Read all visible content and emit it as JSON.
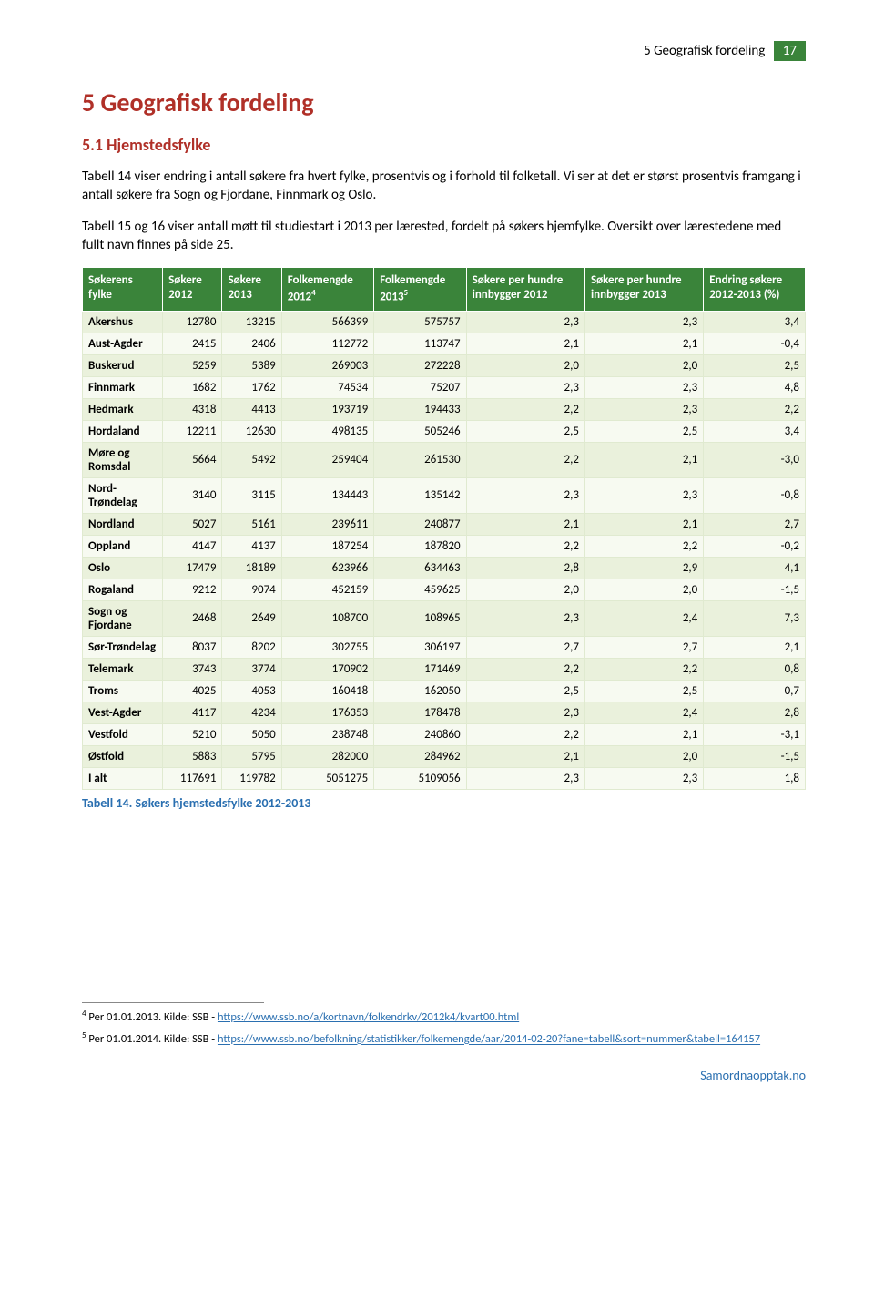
{
  "header": {
    "section_label": "5 Geografisk fordeling",
    "page_number": "17"
  },
  "heading": "5 Geografisk fordeling",
  "subheading": "5.1 Hjemstedsfylke",
  "paragraphs": {
    "p1": "Tabell 14 viser endring i antall søkere fra hvert fylke, prosentvis og i forhold til folketall. Vi ser at det er størst prosentvis framgang i antall søkere fra Sogn og Fjordane, Finnmark og Oslo.",
    "p2": "Tabell 15 og 16 viser antall møtt til studiestart i 2013 per lærested, fordelt på søkers hjemfylke. Oversikt over lærestedene med fullt navn finnes på side 25."
  },
  "table": {
    "columns": [
      "Søkerens fylke",
      "Søkere 2012",
      "Søkere 2013",
      "Folkemengde 2012",
      "Folkemengde 2013",
      "Søkere per hundre innbygger 2012",
      "Søkere per hundre innbygger 2013",
      "Endring søkere 2012-2013 (%)"
    ],
    "sup4": "4",
    "sup5": "5",
    "rows": [
      [
        "Akershus",
        "12780",
        "13215",
        "566399",
        "575757",
        "2,3",
        "2,3",
        "3,4"
      ],
      [
        "Aust-Agder",
        "2415",
        "2406",
        "112772",
        "113747",
        "2,1",
        "2,1",
        "-0,4"
      ],
      [
        "Buskerud",
        "5259",
        "5389",
        "269003",
        "272228",
        "2,0",
        "2,0",
        "2,5"
      ],
      [
        "Finnmark",
        "1682",
        "1762",
        "74534",
        "75207",
        "2,3",
        "2,3",
        "4,8"
      ],
      [
        "Hedmark",
        "4318",
        "4413",
        "193719",
        "194433",
        "2,2",
        "2,3",
        "2,2"
      ],
      [
        "Hordaland",
        "12211",
        "12630",
        "498135",
        "505246",
        "2,5",
        "2,5",
        "3,4"
      ],
      [
        "Møre og Romsdal",
        "5664",
        "5492",
        "259404",
        "261530",
        "2,2",
        "2,1",
        "-3,0"
      ],
      [
        "Nord-Trøndelag",
        "3140",
        "3115",
        "134443",
        "135142",
        "2,3",
        "2,3",
        "-0,8"
      ],
      [
        "Nordland",
        "5027",
        "5161",
        "239611",
        "240877",
        "2,1",
        "2,1",
        "2,7"
      ],
      [
        "Oppland",
        "4147",
        "4137",
        "187254",
        "187820",
        "2,2",
        "2,2",
        "-0,2"
      ],
      [
        "Oslo",
        "17479",
        "18189",
        "623966",
        "634463",
        "2,8",
        "2,9",
        "4,1"
      ],
      [
        "Rogaland",
        "9212",
        "9074",
        "452159",
        "459625",
        "2,0",
        "2,0",
        "-1,5"
      ],
      [
        "Sogn og Fjordane",
        "2468",
        "2649",
        "108700",
        "108965",
        "2,3",
        "2,4",
        "7,3"
      ],
      [
        "Sør-Trøndelag",
        "8037",
        "8202",
        "302755",
        "306197",
        "2,7",
        "2,7",
        "2,1"
      ],
      [
        "Telemark",
        "3743",
        "3774",
        "170902",
        "171469",
        "2,2",
        "2,2",
        "0,8"
      ],
      [
        "Troms",
        "4025",
        "4053",
        "160418",
        "162050",
        "2,5",
        "2,5",
        "0,7"
      ],
      [
        "Vest-Agder",
        "4117",
        "4234",
        "176353",
        "178478",
        "2,3",
        "2,4",
        "2,8"
      ],
      [
        "Vestfold",
        "5210",
        "5050",
        "238748",
        "240860",
        "2,2",
        "2,1",
        "-3,1"
      ],
      [
        "Østfold",
        "5883",
        "5795",
        "282000",
        "284962",
        "2,1",
        "2,0",
        "-1,5"
      ],
      [
        "I alt",
        "117691",
        "119782",
        "5051275",
        "5109056",
        "2,3",
        "2,3",
        "1,8"
      ]
    ],
    "caption": "Tabell 14. Søkers hjemstedsfylke 2012-2013"
  },
  "footnotes": {
    "f4_prefix": "Per 01.01.2013. Kilde: SSB - ",
    "f4_marker": "4",
    "f4_link": "https://www.ssb.no/a/kortnavn/folkendrkv/2012k4/kvart00.html",
    "f5_prefix": "Per 01.01.2014. Kilde: SSB - ",
    "f5_marker": "5",
    "f5_link": "https://www.ssb.no/befolkning/statistikker/folkemengde/aar/2014-02-20?fane=tabell&sort=nummer&tabell=164157"
  },
  "footer": "Samordnaopptak.no"
}
